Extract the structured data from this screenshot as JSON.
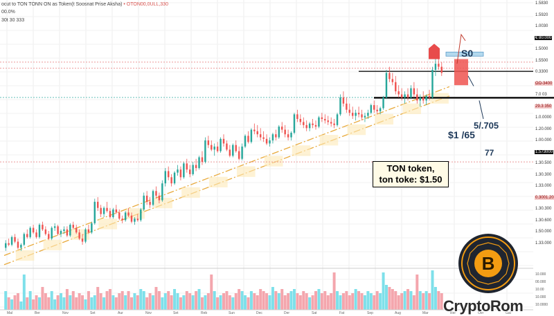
{
  "header": {
    "line1_title": "ocut to TON TONN ON as Token(t Soosnat Prise Aksha)",
    "line1_red": "• OTON00,0ULL,330",
    "line2": "00.0%",
    "line3": "30t 30 333"
  },
  "callout": {
    "line1": "TON token,",
    "line2": "ton toke: $1.50"
  },
  "annotations": {
    "a1": "S0",
    "a2": "5/.705",
    "a3": "$1 /65",
    "a4": "77"
  },
  "brand": {
    "name": "CryptoRom",
    "logo_letter": "B"
  },
  "price_axis_labels": [
    {
      "text": "1.5830",
      "style": "plain"
    },
    {
      "text": "1.5920",
      "style": "plain"
    },
    {
      "text": "1.0030",
      "style": "plain"
    },
    {
      "text": "€ 80.000",
      "style": "black"
    },
    {
      "text": "1.5000",
      "style": "plain"
    },
    {
      "text": "1.5500",
      "style": "plain"
    },
    {
      "text": "0.3300",
      "style": "plain"
    },
    {
      "text": "ΩΩ-3400",
      "style": "red"
    },
    {
      "text": "7.0 03",
      "style": "plain"
    },
    {
      "text": "29.3 350",
      "style": "red"
    },
    {
      "text": "1.0.0000",
      "style": "plain"
    },
    {
      "text": "1.20.000",
      "style": "plain"
    },
    {
      "text": "1.00.000",
      "style": "plain"
    },
    {
      "text": "1.573000",
      "style": "black"
    },
    {
      "text": "1.30.500",
      "style": "plain"
    },
    {
      "text": "1.30.300",
      "style": "plain"
    },
    {
      "text": "1.33.000",
      "style": "plain"
    },
    {
      "text": "0.3001.20",
      "style": "red"
    },
    {
      "text": "1.30.300",
      "style": "plain"
    },
    {
      "text": "1.30.600",
      "style": "plain"
    },
    {
      "text": "1.50.000",
      "style": "plain"
    },
    {
      "text": "1.33.000",
      "style": "plain"
    }
  ],
  "volume_axis_labels": [
    "10.000",
    "00.000",
    "10.00",
    "10.000",
    "10.0000"
  ],
  "x_tick_labels": [
    "Mal",
    "Ber",
    "Nov",
    "Set",
    "Aur",
    "Nov",
    "Set",
    "Reb",
    "Sun",
    "Dec",
    "Der",
    "Sat",
    "Fat",
    "Sep",
    "Aug",
    "Mar",
    "Rer",
    "Oer",
    "Gal"
  ],
  "colors": {
    "up": "#26a69a",
    "down": "#ef5350",
    "vol_up": "#7ee0ea",
    "vol_down": "#f4a6ad",
    "channel": "#e8a93a",
    "ref_line": "#e57373",
    "teal_line": "#4db6ac",
    "brand_orange": "#f39c12"
  },
  "chart_data": {
    "type": "candlestick",
    "title": "ocut to TON TONN ON as Token(t Soosnat Prise Aksha)",
    "y_range": [
      0.9,
      1.7
    ],
    "ohlc": [
      [
        0.96,
        0.985,
        0.95,
        0.975
      ],
      [
        0.975,
        0.99,
        0.965,
        0.97
      ],
      [
        0.97,
        1.0,
        0.965,
        0.995
      ],
      [
        0.995,
        1.005,
        0.975,
        0.98
      ],
      [
        0.98,
        0.99,
        0.955,
        0.96
      ],
      [
        0.96,
        0.975,
        0.95,
        0.97
      ],
      [
        0.97,
        1.01,
        0.965,
        1.005
      ],
      [
        1.005,
        1.02,
        0.99,
        0.995
      ],
      [
        0.995,
        1.03,
        0.99,
        1.025
      ],
      [
        1.025,
        1.035,
        1.005,
        1.01
      ],
      [
        1.01,
        1.02,
        0.99,
        0.995
      ],
      [
        0.995,
        1.04,
        0.99,
        1.035
      ],
      [
        1.035,
        1.045,
        1.015,
        1.02
      ],
      [
        1.02,
        1.03,
        1.0,
        1.005
      ],
      [
        1.005,
        1.015,
        0.985,
        0.99
      ],
      [
        0.99,
        1.03,
        0.985,
        1.025
      ],
      [
        1.025,
        1.04,
        1.015,
        1.03
      ],
      [
        1.03,
        1.035,
        1.0,
        1.005
      ],
      [
        1.005,
        1.02,
        0.995,
        1.015
      ],
      [
        1.015,
        1.03,
        1.005,
        1.02
      ],
      [
        1.02,
        1.03,
        0.995,
        1.0
      ],
      [
        1.0,
        1.04,
        0.995,
        1.035
      ],
      [
        1.035,
        1.045,
        1.02,
        1.025
      ],
      [
        1.025,
        1.035,
        1.005,
        1.01
      ],
      [
        1.01,
        1.02,
        0.985,
        0.99
      ],
      [
        0.99,
        1.005,
        0.97,
        0.98
      ],
      [
        0.98,
        1.025,
        0.975,
        1.02
      ],
      [
        1.02,
        1.035,
        1.005,
        1.01
      ],
      [
        1.01,
        1.045,
        1.005,
        1.04
      ],
      [
        1.04,
        1.12,
        1.035,
        1.11
      ],
      [
        1.11,
        1.125,
        1.08,
        1.09
      ],
      [
        1.09,
        1.1,
        1.06,
        1.07
      ],
      [
        1.07,
        1.095,
        1.06,
        1.09
      ],
      [
        1.09,
        1.11,
        1.075,
        1.08
      ],
      [
        1.08,
        1.09,
        1.055,
        1.06
      ],
      [
        1.06,
        1.09,
        1.055,
        1.085
      ],
      [
        1.085,
        1.1,
        1.07,
        1.075
      ],
      [
        1.075,
        1.085,
        1.05,
        1.055
      ],
      [
        1.055,
        1.065,
        1.04,
        1.05
      ],
      [
        1.05,
        1.08,
        1.045,
        1.075
      ],
      [
        1.075,
        1.09,
        1.06,
        1.065
      ],
      [
        1.065,
        1.075,
        1.04,
        1.045
      ],
      [
        1.045,
        1.06,
        1.035,
        1.055
      ],
      [
        1.055,
        1.07,
        1.045,
        1.05
      ],
      [
        1.05,
        1.09,
        1.045,
        1.085
      ],
      [
        1.085,
        1.14,
        1.08,
        1.13
      ],
      [
        1.13,
        1.145,
        1.1,
        1.11
      ],
      [
        1.11,
        1.125,
        1.09,
        1.1
      ],
      [
        1.1,
        1.15,
        1.095,
        1.145
      ],
      [
        1.145,
        1.16,
        1.12,
        1.13
      ],
      [
        1.13,
        1.14,
        1.105,
        1.115
      ],
      [
        1.115,
        1.18,
        1.11,
        1.17
      ],
      [
        1.17,
        1.22,
        1.16,
        1.21
      ],
      [
        1.21,
        1.225,
        1.18,
        1.19
      ],
      [
        1.19,
        1.2,
        1.16,
        1.17
      ],
      [
        1.17,
        1.21,
        1.165,
        1.205
      ],
      [
        1.205,
        1.23,
        1.195,
        1.215
      ],
      [
        1.215,
        1.225,
        1.18,
        1.19
      ],
      [
        1.19,
        1.24,
        1.185,
        1.235
      ],
      [
        1.235,
        1.25,
        1.205,
        1.215
      ],
      [
        1.215,
        1.23,
        1.19,
        1.2
      ],
      [
        1.2,
        1.24,
        1.195,
        1.23
      ],
      [
        1.23,
        1.25,
        1.21,
        1.22
      ],
      [
        1.22,
        1.26,
        1.215,
        1.255
      ],
      [
        1.255,
        1.275,
        1.23,
        1.24
      ],
      [
        1.24,
        1.32,
        1.235,
        1.31
      ],
      [
        1.31,
        1.325,
        1.285,
        1.295
      ],
      [
        1.295,
        1.31,
        1.275,
        1.28
      ],
      [
        1.28,
        1.3,
        1.26,
        1.29
      ],
      [
        1.29,
        1.305,
        1.27,
        1.275
      ],
      [
        1.275,
        1.32,
        1.27,
        1.315
      ],
      [
        1.315,
        1.33,
        1.29,
        1.3
      ],
      [
        1.3,
        1.31,
        1.275,
        1.28
      ],
      [
        1.28,
        1.295,
        1.255,
        1.26
      ],
      [
        1.26,
        1.3,
        1.255,
        1.295
      ],
      [
        1.295,
        1.31,
        1.27,
        1.275
      ],
      [
        1.275,
        1.29,
        1.245,
        1.25
      ],
      [
        1.25,
        1.3,
        1.245,
        1.29
      ],
      [
        1.29,
        1.33,
        1.285,
        1.325
      ],
      [
        1.325,
        1.34,
        1.3,
        1.305
      ],
      [
        1.305,
        1.35,
        1.3,
        1.345
      ],
      [
        1.345,
        1.365,
        1.33,
        1.34
      ],
      [
        1.34,
        1.36,
        1.32,
        1.33
      ],
      [
        1.33,
        1.35,
        1.31,
        1.32
      ],
      [
        1.32,
        1.34,
        1.305,
        1.315
      ],
      [
        1.315,
        1.33,
        1.295,
        1.3
      ],
      [
        1.3,
        1.32,
        1.29,
        1.31
      ],
      [
        1.31,
        1.335,
        1.3,
        1.33
      ],
      [
        1.33,
        1.345,
        1.31,
        1.32
      ],
      [
        1.32,
        1.36,
        1.315,
        1.355
      ],
      [
        1.355,
        1.37,
        1.335,
        1.345
      ],
      [
        1.345,
        1.36,
        1.32,
        1.33
      ],
      [
        1.33,
        1.345,
        1.31,
        1.32
      ],
      [
        1.32,
        1.34,
        1.31,
        1.335
      ],
      [
        1.335,
        1.4,
        1.33,
        1.395
      ],
      [
        1.395,
        1.41,
        1.37,
        1.38
      ],
      [
        1.38,
        1.395,
        1.36,
        1.37
      ],
      [
        1.37,
        1.385,
        1.35,
        1.36
      ],
      [
        1.36,
        1.375,
        1.34,
        1.35
      ],
      [
        1.35,
        1.37,
        1.34,
        1.365
      ],
      [
        1.365,
        1.38,
        1.35,
        1.36
      ],
      [
        1.36,
        1.375,
        1.345,
        1.355
      ],
      [
        1.355,
        1.39,
        1.35,
        1.385
      ],
      [
        1.385,
        1.4,
        1.37,
        1.38
      ],
      [
        1.38,
        1.395,
        1.365,
        1.375
      ],
      [
        1.375,
        1.39,
        1.36,
        1.37
      ],
      [
        1.37,
        1.385,
        1.355,
        1.365
      ],
      [
        1.365,
        1.38,
        1.35,
        1.36
      ],
      [
        1.36,
        1.4,
        1.355,
        1.395
      ],
      [
        1.395,
        1.46,
        1.39,
        1.45
      ],
      [
        1.45,
        1.47,
        1.42,
        1.43
      ],
      [
        1.43,
        1.45,
        1.4,
        1.41
      ],
      [
        1.41,
        1.43,
        1.39,
        1.4
      ],
      [
        1.4,
        1.42,
        1.38,
        1.39
      ],
      [
        1.39,
        1.41,
        1.375,
        1.4
      ],
      [
        1.4,
        1.42,
        1.385,
        1.395
      ],
      [
        1.395,
        1.41,
        1.375,
        1.385
      ],
      [
        1.385,
        1.4,
        1.37,
        1.39
      ],
      [
        1.39,
        1.41,
        1.38,
        1.4
      ],
      [
        1.4,
        1.43,
        1.395,
        1.425
      ],
      [
        1.425,
        1.44,
        1.4,
        1.41
      ],
      [
        1.41,
        1.425,
        1.395,
        1.405
      ],
      [
        1.405,
        1.42,
        1.395,
        1.415
      ],
      [
        1.415,
        1.455,
        1.41,
        1.45
      ],
      [
        1.45,
        1.54,
        1.445,
        1.53
      ],
      [
        1.53,
        1.55,
        1.5,
        1.51
      ],
      [
        1.51,
        1.53,
        1.49,
        1.5
      ],
      [
        1.5,
        1.52,
        1.46,
        1.47
      ],
      [
        1.47,
        1.49,
        1.45,
        1.46
      ],
      [
        1.46,
        1.48,
        1.44,
        1.45
      ],
      [
        1.45,
        1.47,
        1.43,
        1.46
      ],
      [
        1.46,
        1.48,
        1.44,
        1.45
      ],
      [
        1.45,
        1.49,
        1.445,
        1.48
      ],
      [
        1.48,
        1.5,
        1.45,
        1.46
      ],
      [
        1.46,
        1.48,
        1.43,
        1.44
      ],
      [
        1.44,
        1.46,
        1.42,
        1.45
      ],
      [
        1.45,
        1.47,
        1.43,
        1.44
      ],
      [
        1.44,
        1.46,
        1.425,
        1.455
      ],
      [
        1.455,
        1.475,
        1.44,
        1.45
      ],
      [
        1.45,
        1.55,
        1.445,
        1.54
      ],
      [
        1.54,
        1.58,
        1.52,
        1.56
      ],
      [
        1.56,
        1.575,
        1.54,
        1.55
      ],
      [
        1.55,
        1.565,
        1.52,
        1.53
      ]
    ],
    "volume": [
      0.45,
      0.3,
      0.25,
      0.35,
      0.4,
      0.2,
      0.85,
      0.3,
      0.45,
      0.25,
      0.35,
      0.3,
      0.55,
      0.4,
      0.3,
      0.45,
      0.25,
      0.35,
      0.4,
      0.3,
      0.5,
      0.35,
      0.45,
      0.3,
      0.4,
      0.35,
      0.25,
      0.45,
      0.3,
      0.35,
      0.55,
      0.4,
      0.3,
      0.45,
      0.5,
      0.35,
      0.3,
      0.4,
      0.45,
      0.35,
      0.45,
      0.3,
      0.4,
      0.35,
      0.5,
      0.45,
      0.3,
      0.4,
      0.35,
      0.55,
      0.45,
      0.3,
      0.4,
      0.45,
      0.35,
      0.5,
      0.4,
      0.3,
      0.35,
      0.45,
      0.4,
      0.35,
      0.45,
      0.5,
      0.3,
      0.35,
      0.4,
      0.85,
      0.45,
      0.3,
      0.35,
      0.4,
      0.45,
      0.35,
      0.3,
      0.4,
      0.5,
      0.45,
      0.35,
      0.3,
      0.45,
      0.4,
      0.35,
      0.5,
      0.45,
      0.4,
      0.35,
      0.55,
      0.45,
      0.4,
      0.5,
      0.35,
      0.4,
      0.45,
      0.5,
      0.4,
      0.35,
      0.45,
      0.4,
      0.3,
      0.35,
      0.45,
      0.5,
      0.4,
      0.45,
      0.35,
      0.4,
      0.9,
      0.45,
      0.35,
      0.4,
      0.45,
      0.35,
      0.4,
      0.5,
      0.45,
      0.4,
      0.35,
      0.45,
      0.4,
      0.35,
      0.45,
      0.4,
      0.9,
      0.6,
      0.55,
      0.5,
      0.45,
      0.35,
      0.4,
      0.45,
      0.5,
      0.45,
      0.35,
      0.85,
      0.45,
      0.4,
      0.45,
      0.4,
      0.95,
      0.55,
      0.45,
      0.4
    ],
    "horizontal_levels": [
      {
        "price": 1.565,
        "style": "red-dotted"
      },
      {
        "price": 1.545,
        "style": "red-dotted"
      },
      {
        "price": 1.535,
        "style": "black"
      },
      {
        "price": 1.45,
        "style": "teal-dotted"
      },
      {
        "price": 1.449,
        "style": "black-thick"
      },
      {
        "price": 1.24,
        "style": "red-dotted"
      }
    ]
  }
}
